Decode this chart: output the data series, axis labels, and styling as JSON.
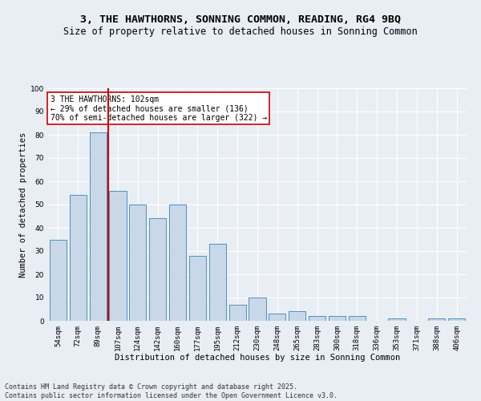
{
  "title1": "3, THE HAWTHORNS, SONNING COMMON, READING, RG4 9BQ",
  "title2": "Size of property relative to detached houses in Sonning Common",
  "xlabel": "Distribution of detached houses by size in Sonning Common",
  "ylabel": "Number of detached properties",
  "categories": [
    "54sqm",
    "72sqm",
    "89sqm",
    "107sqm",
    "124sqm",
    "142sqm",
    "160sqm",
    "177sqm",
    "195sqm",
    "212sqm",
    "230sqm",
    "248sqm",
    "265sqm",
    "283sqm",
    "300sqm",
    "318sqm",
    "336sqm",
    "353sqm",
    "371sqm",
    "388sqm",
    "406sqm"
  ],
  "values": [
    35,
    54,
    81,
    56,
    50,
    44,
    50,
    28,
    33,
    7,
    10,
    3,
    4,
    2,
    2,
    2,
    0,
    1,
    0,
    1,
    1
  ],
  "bar_color": "#c8d8e8",
  "bar_edge_color": "#5090c0",
  "vline_color": "#cc0000",
  "annotation_text": "3 THE HAWTHORNS: 102sqm\n← 29% of detached houses are smaller (136)\n70% of semi-detached houses are larger (322) →",
  "annotation_box_color": "#ffffff",
  "annotation_box_edge_color": "#cc0000",
  "bg_color": "#e8eef4",
  "plot_bg_color": "#e8eef4",
  "grid_color": "#ffffff",
  "ylim": [
    0,
    100
  ],
  "yticks": [
    0,
    10,
    20,
    30,
    40,
    50,
    60,
    70,
    80,
    90,
    100
  ],
  "footer1": "Contains HM Land Registry data © Crown copyright and database right 2025.",
  "footer2": "Contains public sector information licensed under the Open Government Licence v3.0.",
  "title_fontsize": 9.5,
  "subtitle_fontsize": 8.5,
  "axis_label_fontsize": 7.5,
  "tick_fontsize": 6.5,
  "annotation_fontsize": 7,
  "footer_fontsize": 6
}
